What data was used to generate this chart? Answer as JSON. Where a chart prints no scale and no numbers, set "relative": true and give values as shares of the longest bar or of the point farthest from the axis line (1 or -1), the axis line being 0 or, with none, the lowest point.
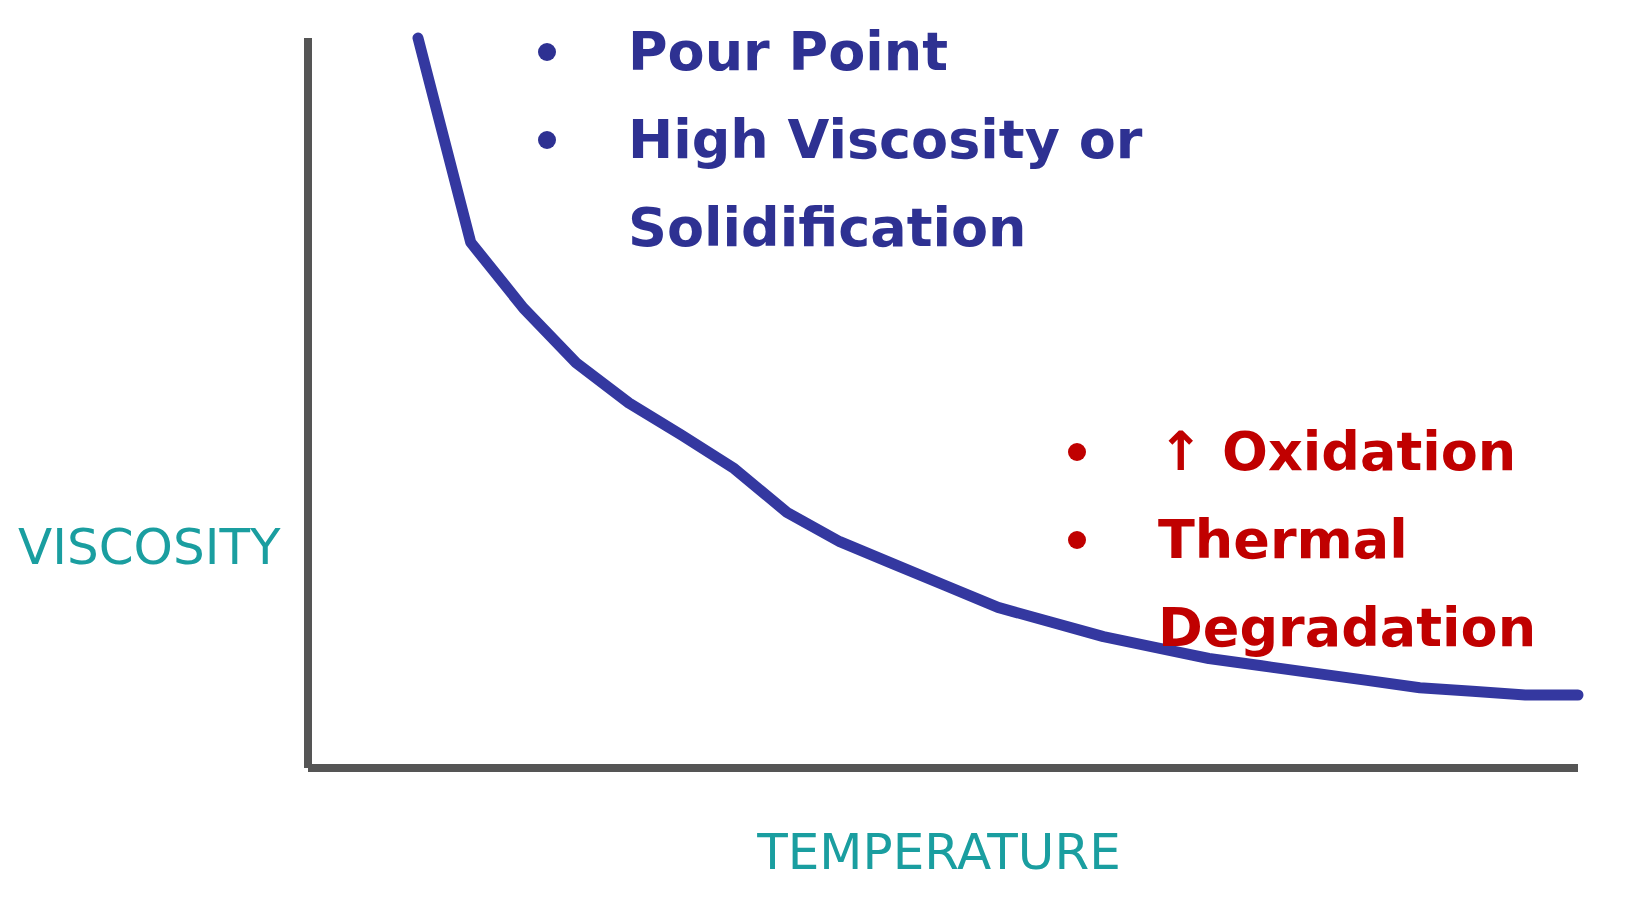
{
  "chart_data": {
    "type": "line",
    "relative": true,
    "xlabel": "TEMPERATURE",
    "ylabel": "VISCOSITY",
    "categories": [
      null,
      null,
      null,
      null,
      null,
      null,
      null,
      null,
      null,
      null,
      null,
      null,
      null,
      null,
      null,
      null,
      null,
      null,
      null,
      null,
      null,
      null,
      null
    ],
    "series": [
      {
        "values": [
          1,
          0.72,
          0.63,
          0.555,
          0.5,
          0.456,
          0.41,
          0.35,
          0.31,
          0.28,
          0.25,
          0.22,
          0.2,
          0.18,
          0.165,
          0.15,
          0.14,
          0.13,
          0.12,
          0.11,
          0.105,
          0.1,
          0.1
        ],
        "color": "#3438a0"
      }
    ],
    "annotations": [
      "Pour Point",
      "High Viscosity or Solidification",
      "↑ Oxidation",
      "Thermal Degradation"
    ],
    "grid": false,
    "legend": false
  }
}
